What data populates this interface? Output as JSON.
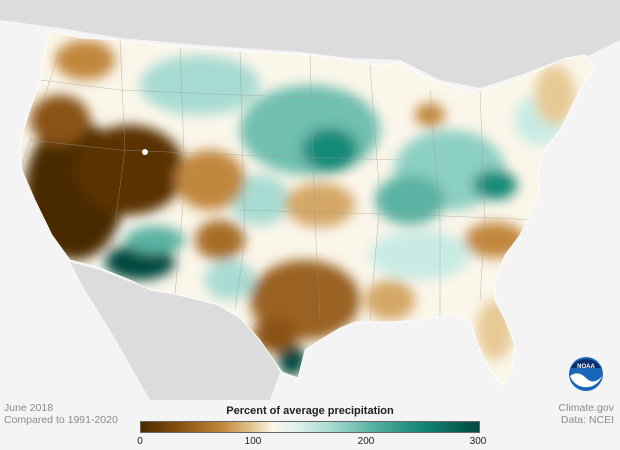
{
  "caption_left": {
    "line1": "June 2018",
    "line2": "Compared to 1991-2020"
  },
  "caption_right": {
    "line1": "Climate.gov",
    "line2": "Data: NCEI"
  },
  "legend": {
    "title": "Percent of average precipitation",
    "ticks": [
      "0",
      "100",
      "200",
      "300"
    ],
    "range": [
      0,
      300
    ]
  },
  "logo_text": "NOAA",
  "colors": {
    "driest": "#4a2a00",
    "dry": "#c1873c",
    "normal": "#fbf6ea",
    "wet": "#5bb2a3",
    "wettest": "#00493f",
    "land_outside": "#dcdcdc",
    "water": "#f4f4f4"
  }
}
